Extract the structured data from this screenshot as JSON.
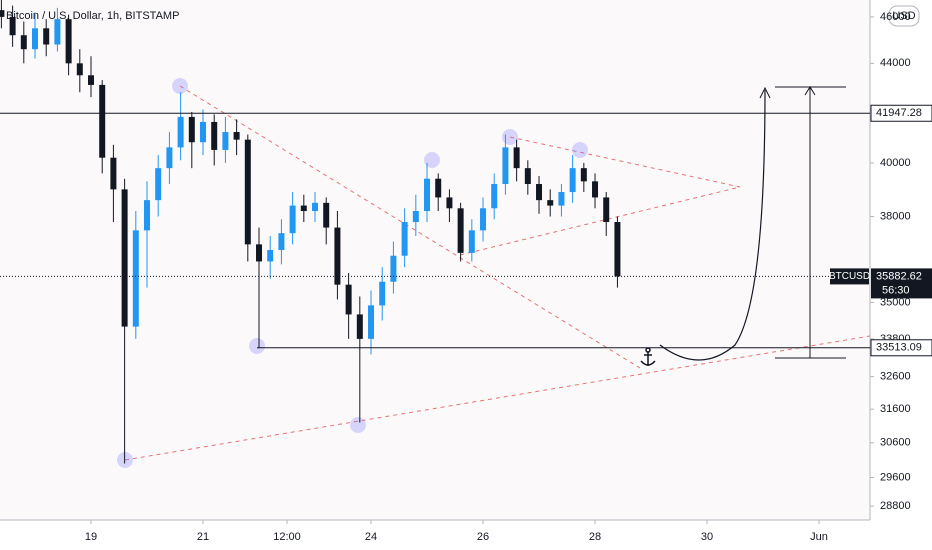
{
  "chart_data": {
    "type": "candlestick",
    "title": "Bitcoin / U.S. Dollar, 1h, BITSTAMP",
    "currency": "USD",
    "symbol": "BTCUSD",
    "countdown": "56:30",
    "x": [
      17.4,
      17.6,
      17.8,
      18.0,
      18.2,
      18.4,
      18.6,
      18.8,
      19.0,
      19.2,
      19.4,
      19.6,
      19.8,
      20.0,
      20.2,
      20.4,
      20.6,
      20.8,
      21.0,
      21.2,
      21.4,
      21.6,
      21.8,
      22.0,
      22.2,
      22.4,
      22.6,
      22.8,
      23.0,
      23.2,
      23.4,
      23.6,
      23.8,
      24.0,
      24.2,
      24.4,
      24.6,
      24.8,
      25.0,
      25.2,
      25.4,
      25.6,
      25.8,
      26.0,
      26.2,
      26.4,
      26.6,
      26.8,
      27.0,
      27.2,
      27.4,
      27.6,
      27.8,
      28.0,
      28.2,
      28.4
    ],
    "open": [
      46300,
      46000,
      45200,
      44600,
      45500,
      44800,
      45900,
      44000,
      43500,
      43100,
      40200,
      39000,
      34200,
      37500,
      38600,
      39800,
      40600,
      41800,
      40800,
      41600,
      40500,
      41200,
      40900,
      37000,
      36400,
      36800,
      37400,
      38400,
      38200,
      38500,
      37600,
      35600,
      34600,
      33800,
      34900,
      35700,
      36600,
      37800,
      38200,
      39400,
      38700,
      38300,
      36700,
      37500,
      38300,
      39200,
      40600,
      39800,
      39200,
      38600,
      38400,
      38900,
      39800,
      39300,
      38700,
      37800
    ],
    "high": [
      46800,
      46500,
      45800,
      46200,
      45900,
      46400,
      46100,
      44600,
      44300,
      43300,
      40700,
      39400,
      38200,
      39300,
      40300,
      41200,
      42800,
      42000,
      42100,
      41900,
      41800,
      41700,
      41100,
      37600,
      37300,
      37900,
      38900,
      38800,
      38900,
      38700,
      38200,
      36000,
      35200,
      35400,
      36200,
      37100,
      38300,
      38800,
      40000,
      39600,
      39000,
      38500,
      37900,
      38700,
      39600,
      41100,
      40900,
      40100,
      39500,
      39000,
      39200,
      40300,
      40000,
      39600,
      38900,
      38000
    ],
    "low": [
      45500,
      44700,
      44000,
      44200,
      44300,
      44500,
      43500,
      42800,
      42600,
      39600,
      37800,
      30000,
      33800,
      35500,
      38000,
      39200,
      40100,
      39800,
      40300,
      39900,
      40000,
      40300,
      36400,
      33500,
      35800,
      36300,
      37000,
      37800,
      37800,
      37000,
      35100,
      33800,
      31200,
      33300,
      34400,
      35300,
      36200,
      37300,
      37800,
      38200,
      37800,
      36400,
      36400,
      37100,
      37900,
      38800,
      39300,
      38800,
      38100,
      38000,
      38000,
      38500,
      38900,
      38300,
      37300,
      35500
    ],
    "close": [
      46000,
      45200,
      44600,
      45500,
      44800,
      45900,
      44000,
      43500,
      43100,
      40200,
      39000,
      34200,
      37500,
      38600,
      39800,
      40600,
      41800,
      40800,
      41600,
      40500,
      41200,
      40900,
      37000,
      36400,
      36800,
      37400,
      38400,
      38200,
      38500,
      37600,
      35600,
      34600,
      33800,
      34900,
      35700,
      36600,
      37800,
      38200,
      39400,
      38700,
      38300,
      36700,
      37500,
      38300,
      39200,
      40600,
      39800,
      39200,
      38600,
      38400,
      38900,
      39800,
      39300,
      38700,
      37800,
      35882.62
    ],
    "up_color": "#2196f3",
    "down_color": "#131722",
    "log_scale": true,
    "xlim": [
      17.375,
      32.91
    ],
    "xticks": [
      19,
      21,
      {
        "value": 22.5,
        "label": "12:00"
      },
      24,
      26,
      28,
      30,
      {
        "value": 32,
        "label": "Jun"
      }
    ],
    "ylim": [
      28420,
      46750
    ],
    "yticks": [
      46000,
      44000,
      40000,
      38000,
      35000,
      33800,
      32600,
      31600,
      30600,
      29600,
      28800
    ],
    "levels": [
      41947.28,
      33513.09
    ]
  }
}
